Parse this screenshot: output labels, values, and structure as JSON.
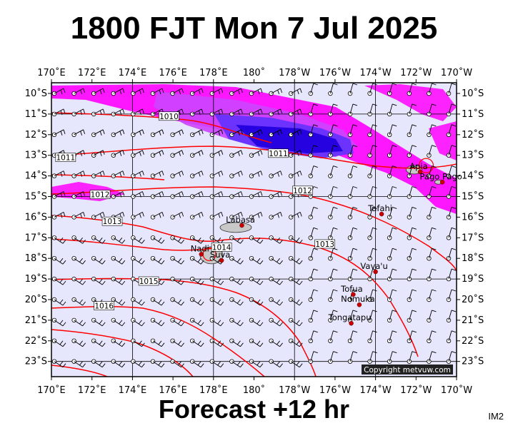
{
  "header": {
    "title": "1800 FJT Mon 7 Jul 2025"
  },
  "footer": {
    "forecast": "Forecast +12 hr",
    "code": "IM2"
  },
  "map": {
    "lon_labels": [
      "170˚E",
      "172˚E",
      "174˚E",
      "176˚E",
      "178˚E",
      "180˚",
      "178˚W",
      "176˚W",
      "174˚W",
      "172˚W",
      "170˚W"
    ],
    "lat_labels": [
      "10˚S",
      "11˚S",
      "12˚S",
      "13˚S",
      "14˚S",
      "15˚S",
      "16˚S",
      "17˚S",
      "18˚S",
      "19˚S",
      "20˚S",
      "21˚S",
      "22˚S",
      "23˚S"
    ],
    "places": [
      {
        "name": "Apia",
        "lon": -171.8,
        "lat": -13.8
      },
      {
        "name": "Pago Pago",
        "lon": -170.7,
        "lat": -14.3
      },
      {
        "name": "Tafahi",
        "lon": -173.7,
        "lat": -15.85
      },
      {
        "name": "Labasa",
        "lon": 179.4,
        "lat": -16.4
      },
      {
        "name": "Nadi",
        "lon": 177.4,
        "lat": -17.8
      },
      {
        "name": "Suva",
        "lon": 178.4,
        "lat": -18.1
      },
      {
        "name": "Vava'u",
        "lon": -174.0,
        "lat": -18.65
      },
      {
        "name": "Tofua",
        "lon": -175.1,
        "lat": -19.75
      },
      {
        "name": "Nomuka",
        "lon": -174.8,
        "lat": -20.25
      },
      {
        "name": "Tongatapu",
        "lon": -175.2,
        "lat": -21.15
      }
    ],
    "isobars": [
      {
        "label": "1010",
        "label_lon": 175.8,
        "label_lat": -11.1
      },
      {
        "label": "1011",
        "label_lon": 170.7,
        "label_lat": -13.1
      },
      {
        "label": "1011",
        "label_lon": -178.8,
        "label_lat": -12.9
      },
      {
        "label": "1012",
        "label_lon": 172.4,
        "label_lat": -14.9
      },
      {
        "label": "1012",
        "label_lon": -177.6,
        "label_lat": -14.7
      },
      {
        "label": "1013",
        "label_lon": 173.0,
        "label_lat": -16.2
      },
      {
        "label": "1013",
        "label_lon": -176.5,
        "label_lat": -17.3
      },
      {
        "label": "1014",
        "label_lon": 178.4,
        "label_lat": -17.45
      },
      {
        "label": "1015",
        "label_lon": 174.8,
        "label_lat": -19.1
      },
      {
        "label": "1016",
        "label_lon": 172.6,
        "label_lat": -20.3
      }
    ],
    "colors": {
      "background": "#e6e6fd",
      "contour": "#ff0000",
      "rain_light": "#ff00ff",
      "rain_heavy": "#2200dd"
    },
    "copyright": "Copyright metvuw.com"
  }
}
